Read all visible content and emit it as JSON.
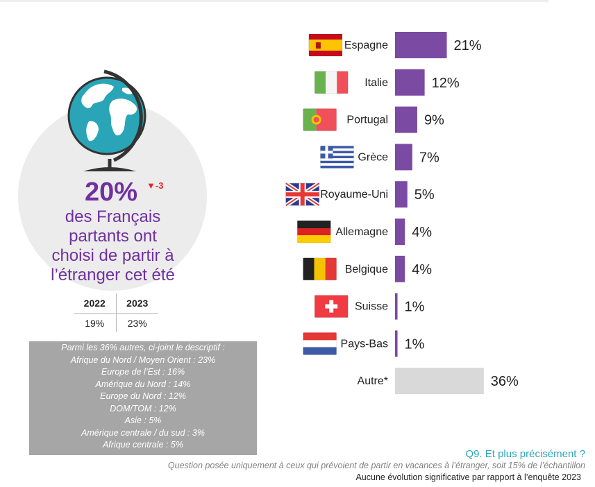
{
  "stat": {
    "value": "20%",
    "delta": "▼-3",
    "line1": "des Français",
    "line2": "partants ont",
    "line3": "choisi de partir à",
    "line4": "l’étranger cet été"
  },
  "years_table": {
    "headers": [
      "2022",
      "2023"
    ],
    "values": [
      "19%",
      "23%"
    ]
  },
  "autres_box": {
    "title": "Parmi les 36% autres, ci-joint le descriptif :",
    "items": [
      "Afrique du Nord / Moyen Orient : 23%",
      "Europe de l’Est : 16%",
      "Amérique du Nord : 14%",
      "Europe du Nord : 12%",
      "DOM/TOM : 12%",
      "Asie : 5%",
      "Amérique centrale / du sud : 3%",
      "Afrique centrale : 5%"
    ]
  },
  "chart_data": {
    "type": "bar",
    "orientation": "horizontal",
    "categories": [
      "Espagne",
      "Italie",
      "Portugal",
      "Grèce",
      "Royaume-Uni",
      "Allemagne",
      "Belgique",
      "Suisse",
      "Pays-Bas",
      "Autre*"
    ],
    "values": [
      21,
      12,
      9,
      7,
      5,
      4,
      4,
      1,
      1,
      36
    ],
    "value_labels": [
      "21%",
      "12%",
      "9%",
      "7%",
      "5%",
      "4%",
      "4%",
      "1%",
      "1%",
      "36%"
    ],
    "flags": [
      "flag-spain",
      "flag-italy",
      "flag-portugal",
      "flag-greece",
      "flag-uk",
      "flag-germany",
      "flag-belgium",
      "flag-switzerland",
      "flag-netherlands",
      ""
    ],
    "colors": {
      "bar": "#7b4aa2",
      "other_bar": "#d9d9d9"
    },
    "xlim": [
      0,
      36
    ],
    "grid": false,
    "legend": "none"
  },
  "footer": {
    "question": "Q9. Et plus précisément ?",
    "note": "Question posée uniquement à ceux qui prévoient de partir en vacances à l’étranger, soit 15% de l’échantillon",
    "evolution": "Aucune évolution significative par rapport à l’enquête 2023"
  }
}
